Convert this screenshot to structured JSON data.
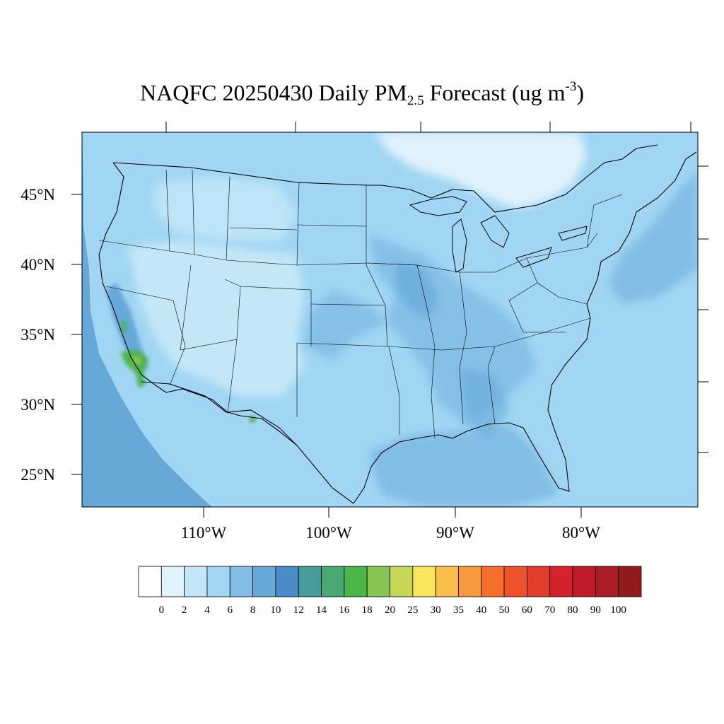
{
  "title": {
    "prefix": "NAQFC 20250430 Daily PM",
    "subscript": "2.5",
    "middle": " Forecast (ug m",
    "superscript": "-3",
    "suffix": ")"
  },
  "map": {
    "lat_labels": [
      "45°N",
      "40°N",
      "35°N",
      "30°N",
      "25°N"
    ],
    "lon_labels": [
      "110°W",
      "100°W",
      "90°W",
      "80°W"
    ],
    "colors": {
      "ocean_base": "#a0d6f3",
      "land_base": "#a0d6f3",
      "pacific_outer": "#66a9d9",
      "pacific_mid": "#82bde6",
      "gulf": "#82bde6",
      "atlantic_outer": "#82bde6",
      "northeast_clean": "#e0f3fc",
      "great_basin": "#c4e7f8",
      "plains_band": "#82bde6",
      "hotspot_green": "#4bb648",
      "hotspot_lightgreen": "#89c552",
      "border_line": "#000000",
      "state_line": "#000000"
    }
  },
  "colorbar": {
    "labels": [
      "0",
      "2",
      "4",
      "6",
      "8",
      "10",
      "12",
      "14",
      "16",
      "18",
      "20",
      "25",
      "30",
      "35",
      "40",
      "50",
      "60",
      "70",
      "80",
      "90",
      "100"
    ],
    "colors": [
      "#ffffff",
      "#e0f3fc",
      "#c4e7f8",
      "#a0d6f3",
      "#82bde6",
      "#66a9d9",
      "#4a8bc8",
      "#479d9c",
      "#49a873",
      "#4bb648",
      "#89c552",
      "#c5d856",
      "#f9e65d",
      "#f9bd4b",
      "#f89a3c",
      "#f5702d",
      "#ec532d",
      "#e23d2c",
      "#d5222d",
      "#be1c2a",
      "#ab1c24",
      "#921b1e"
    ]
  }
}
